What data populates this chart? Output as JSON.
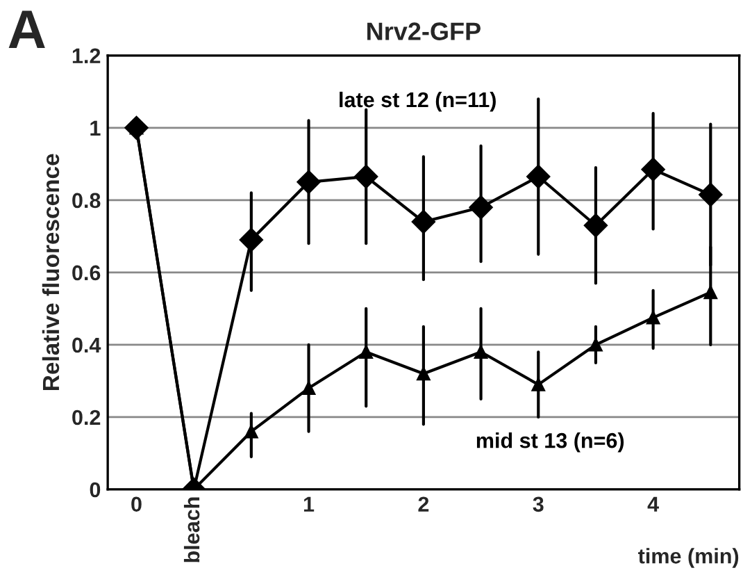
{
  "chart_data": {
    "type": "line",
    "title": "Nrv2-GFP",
    "xlabel": "time (min)",
    "ylabel": "Relative fluorescence",
    "annotations": [
      "A"
    ],
    "categories": [
      "0",
      "bleach",
      null,
      "1",
      null,
      "2",
      null,
      "3",
      null,
      "4",
      null
    ],
    "ylim": [
      0,
      1.2
    ],
    "yticks": [
      0,
      0.2,
      0.4,
      0.6,
      0.8,
      1,
      1.2
    ],
    "grid": "y",
    "legend": false,
    "series": [
      {
        "name": "late st 12 (n=11)",
        "color": "#000000",
        "marker": "diamond",
        "values": [
          1,
          0,
          0.69,
          0.85,
          0.865,
          0.74,
          0.78,
          0.865,
          0.73,
          0.885,
          0.815
        ],
        "errors": [
          null,
          null,
          [
            0.55,
            0.82
          ],
          [
            0.68,
            1.02
          ],
          [
            0.68,
            1.05
          ],
          [
            0.58,
            0.92
          ],
          [
            0.63,
            0.95
          ],
          [
            0.65,
            1.08
          ],
          [
            0.57,
            0.89
          ],
          [
            0.72,
            1.04
          ],
          [
            0.62,
            1.01
          ]
        ]
      },
      {
        "name": "mid st 13 (n=6)",
        "color": "#000000",
        "marker": "triangle",
        "values": [
          1,
          0,
          0.16,
          0.28,
          0.38,
          0.32,
          0.38,
          0.29,
          0.4,
          0.475,
          0.545
        ],
        "errors": [
          null,
          null,
          [
            0.09,
            0.21
          ],
          [
            0.16,
            0.4
          ],
          [
            0.23,
            0.5
          ],
          [
            0.18,
            0.45
          ],
          [
            0.25,
            0.5
          ],
          [
            0.2,
            0.38
          ],
          [
            0.35,
            0.45
          ],
          [
            0.39,
            0.55
          ],
          [
            0.4,
            0.67
          ]
        ]
      }
    ]
  }
}
